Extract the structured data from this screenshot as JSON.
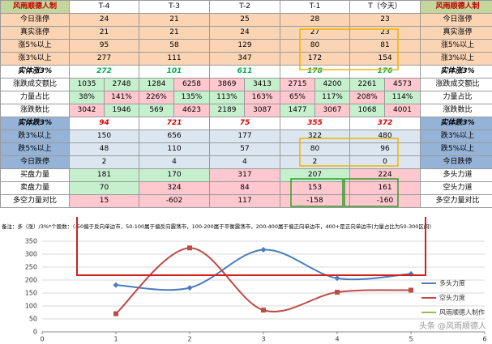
{
  "table": {
    "header": [
      "风雨顺德人制",
      "T-4",
      "T-3",
      "T-2",
      "T-1",
      "T（今天）",
      "风雨顺德人制"
    ],
    "rows": [
      {
        "label": "今日涨停",
        "cells": [
          24,
          21,
          25,
          28,
          23
        ],
        "right": "今日涨停"
      },
      {
        "label": "真实涨停",
        "cells": [
          21,
          21,
          24,
          27,
          23
        ],
        "right": "真实涨停"
      },
      {
        "label": "涨5%以上",
        "cells": [
          95,
          58,
          129,
          80,
          81
        ],
        "right": "涨5%以上"
      },
      {
        "label": "涨3%以上",
        "cells": [
          277,
          111,
          347,
          172,
          154
        ],
        "right": "涨3%以上"
      },
      {
        "label": "实体涨3%",
        "cells": [
          272,
          101,
          611,
          178,
          176
        ],
        "right": "实体涨3%"
      },
      {
        "label": "涨跌成交额比",
        "cells": [
          1035,
          2748,
          1284,
          6258,
          3869,
          3413,
          2715,
          4200,
          2261,
          4573
        ],
        "right": "涨跌成交额比"
      },
      {
        "label": "力量占比",
        "cells": [
          "38%",
          "141%",
          "226%",
          "135%",
          "113%",
          "163%",
          "65%",
          "117%",
          "208%",
          "114%"
        ],
        "right": "力量占比"
      },
      {
        "label": "涨跌数比",
        "cells": [
          3042,
          1946,
          569,
          4623,
          2189,
          3087,
          1477,
          3067,
          1068,
          4001
        ],
        "right": "涨跌数比"
      },
      {
        "label": "实体跌3%",
        "cells": [
          94,
          721,
          75,
          355,
          372
        ],
        "right": "实体跌3%"
      },
      {
        "label": "跌3%以上",
        "cells": [
          150,
          656,
          177,
          322,
          480
        ],
        "right": "跌3%以上"
      },
      {
        "label": "跌5%以上",
        "cells": [
          48,
          110,
          57,
          80,
          96
        ],
        "right": "跌5%以上"
      },
      {
        "label": "今日跌停",
        "cells": [
          2,
          4,
          4,
          2,
          0
        ],
        "right": "今日跌停"
      },
      {
        "label": "买盘力量",
        "cells": [
          181,
          170,
          317,
          207,
          224
        ],
        "right": "多头力道"
      },
      {
        "label": "卖盘力量",
        "cells": [
          70,
          324,
          84,
          153,
          161
        ],
        "right": "空头力道"
      },
      {
        "label": "多空力量对比",
        "cells": [
          15,
          -602,
          117,
          -158,
          -160
        ],
        "right": "多空力量对比"
      }
    ]
  },
  "note": "备注：多（涨）/3%*个股数：（-50偏于反向单边市，50-100属于偏反向震荡市，100-200属于平衡震荡市，200-400属于偏正向单边市，400+是正向单边市(力量占比为50-300区间)",
  "chart_data": {
    "type": "line",
    "x": [
      1,
      2,
      3,
      4,
      5
    ],
    "series": [
      {
        "name": "多头力度",
        "color": "#4a7ebb",
        "marker": "diamond",
        "values": [
          181,
          170,
          317,
          207,
          224
        ]
      },
      {
        "name": "空头力度",
        "color": "#be4b48",
        "marker": "square",
        "values": [
          70,
          324,
          84,
          153,
          161
        ]
      }
    ],
    "legend_extra": {
      "name": "风雨顺德人制作",
      "color": "#9bbb59"
    },
    "xlim": [
      0,
      6
    ],
    "xticks": [
      0,
      1,
      2,
      3,
      4,
      5,
      6
    ],
    "ylim": [
      0,
      350
    ],
    "yticks": [
      0,
      50,
      100,
      150,
      200,
      250,
      300,
      350
    ],
    "grid": true,
    "smooth": true,
    "legend": "right"
  },
  "watermark": "头条 @风雨顺德人"
}
